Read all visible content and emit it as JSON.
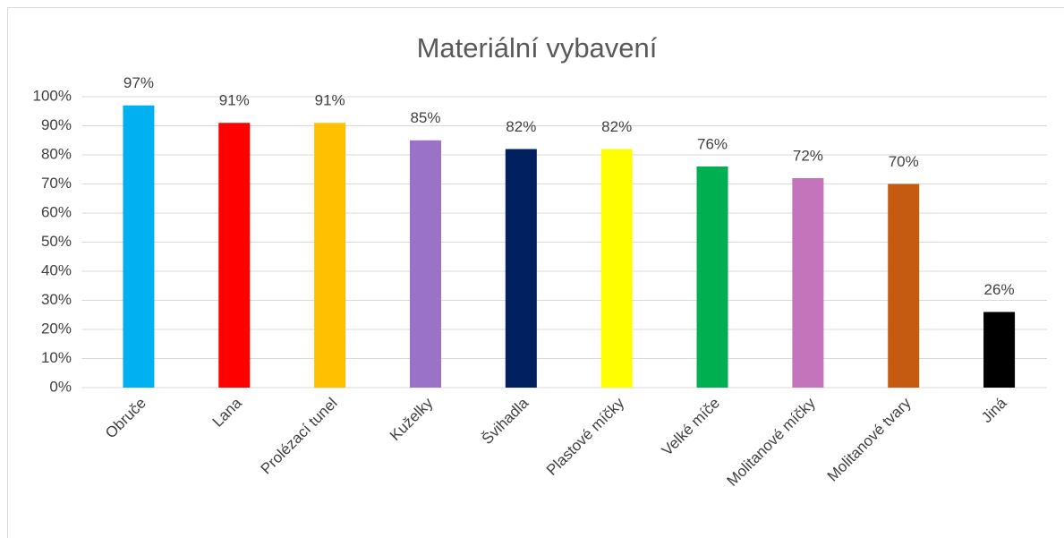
{
  "chart_data": {
    "type": "bar",
    "title": "Materiální vybavení",
    "categories": [
      "Obruče",
      "Lana",
      "Prolézací tunel",
      "Kuželky",
      "Švihadla",
      "Plastové míčky",
      "Velké míče",
      "Molitanové míčky",
      "Molitanové tvary",
      "Jiná"
    ],
    "values": [
      97,
      91,
      91,
      85,
      82,
      82,
      76,
      72,
      70,
      26
    ],
    "value_labels": [
      "97%",
      "91%",
      "91%",
      "85%",
      "82%",
      "82%",
      "76%",
      "72%",
      "70%",
      "26%"
    ],
    "colors": [
      "#00b0f0",
      "#ff0000",
      "#ffc000",
      "#9a72c8",
      "#002060",
      "#ffff00",
      "#00b050",
      "#c374bb",
      "#c55a11",
      "#000000"
    ],
    "ylim": [
      0,
      100
    ],
    "yticks": [
      {
        "value": 0,
        "label": "0%"
      },
      {
        "value": 10,
        "label": "10%"
      },
      {
        "value": 20,
        "label": "20%"
      },
      {
        "value": 30,
        "label": "30%"
      },
      {
        "value": 40,
        "label": "40%"
      },
      {
        "value": 50,
        "label": "50%"
      },
      {
        "value": 60,
        "label": "60%"
      },
      {
        "value": 70,
        "label": "70%"
      },
      {
        "value": 80,
        "label": "80%"
      },
      {
        "value": 90,
        "label": "90%"
      },
      {
        "value": 100,
        "label": "100%"
      }
    ],
    "grid": true
  }
}
